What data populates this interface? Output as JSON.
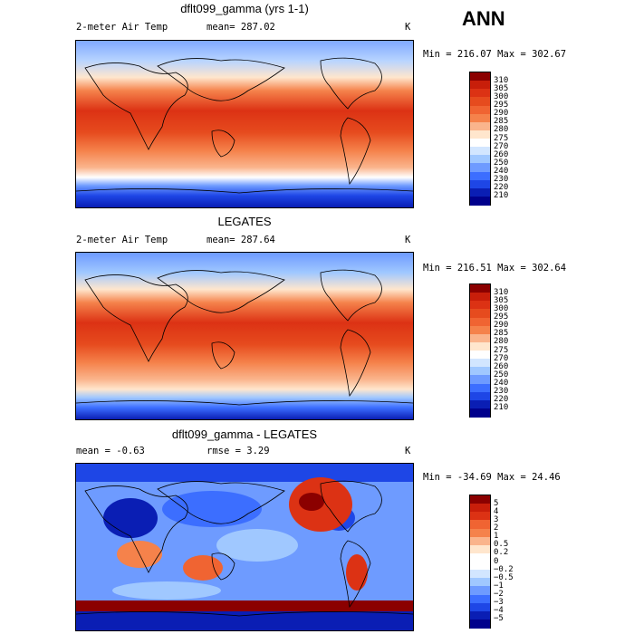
{
  "season": "ANN",
  "panels": [
    {
      "title": "dflt099_gamma (yrs 1-1)",
      "left": "2-meter Air Temp",
      "mid": "mean= 287.02",
      "unit": "K",
      "minmax": "Min = 216.07 Max = 302.67"
    },
    {
      "title": "LEGATES",
      "left": "2-meter Air Temp",
      "mid": "mean= 287.64",
      "unit": "K",
      "minmax": "Min = 216.51 Max = 302.64"
    },
    {
      "title": "dflt099_gamma - LEGATES",
      "left": "mean =   -0.63",
      "mid": "rmse =    3.29",
      "unit": "K",
      "minmax": "Min = -34.69 Max =  24.46"
    }
  ],
  "colorbars": {
    "temp": {
      "labels": [
        "310",
        "305",
        "300",
        "295",
        "290",
        "285",
        "280",
        "275",
        "270",
        "260",
        "250",
        "240",
        "230",
        "220",
        "210"
      ],
      "colors": [
        "#8b0000",
        "#c81e0a",
        "#dc3214",
        "#e64b1e",
        "#f06432",
        "#f5824b",
        "#fab48c",
        "#ffe6cd",
        "#ffffff",
        "#d2e6ff",
        "#a0c8ff",
        "#6e9bff",
        "#3c6eff",
        "#1e46e6",
        "#0a1eb4",
        "#00008c"
      ]
    },
    "diff": {
      "labels": [
        "5",
        "4",
        "3",
        "2",
        "1",
        "0.5",
        "0.2",
        "0",
        "−0.2",
        "−0.5",
        "−1",
        "−2",
        "−3",
        "−4",
        "−5"
      ],
      "colors": [
        "#8b0000",
        "#c81e0a",
        "#dc3214",
        "#f06432",
        "#f5824b",
        "#fab48c",
        "#ffe6cd",
        "#ffffff",
        "#ffffff",
        "#d2e6ff",
        "#a0c8ff",
        "#6e9bff",
        "#3c6eff",
        "#1e46e6",
        "#0a1eb4",
        "#00008c"
      ]
    }
  }
}
